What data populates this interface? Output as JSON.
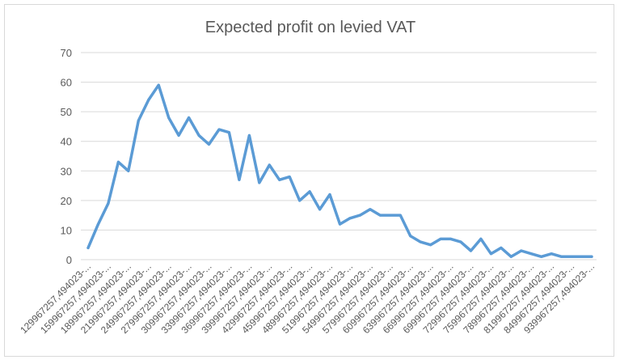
{
  "chart_data": {
    "type": "line",
    "title": "Expected profit on levied VAT",
    "xlabel": "",
    "ylabel": "",
    "ylim": [
      0,
      70
    ],
    "yticks": [
      0,
      10,
      20,
      30,
      40,
      50,
      60,
      70
    ],
    "grid": true,
    "legend": "none",
    "colors": {
      "line": "#5b9bd5",
      "grid": "#d9d9d9",
      "text": "#595959"
    },
    "categories": [
      "129967257,494023-...",
      "",
      "159967257,494023-...",
      "",
      "189967257,494023-...",
      "",
      "219967257,494023-...",
      "",
      "249967257,494023-...",
      "",
      "279967257,494023-...",
      "",
      "309967257,494023-...",
      "",
      "339967257,494023-...",
      "",
      "369967257,494023-...",
      "",
      "399967257,494023-...",
      "",
      "429967257,494023-...",
      "",
      "459967257,494023-...",
      "",
      "489967257,494023-...",
      "",
      "519967257,494023-...",
      "",
      "549967257,494023-...",
      "",
      "579967257,494023-...",
      "",
      "609967257,494023-...",
      "",
      "639967257,494023-...",
      "",
      "669967257,494023-...",
      "",
      "699967257,494023-...",
      "",
      "729967257,494023-...",
      "",
      "759967257,494023-...",
      "",
      "789967257,494023-...",
      "",
      "819967257,494023-...",
      "",
      "849967257,494023-...",
      "",
      "939967257,494023-..."
    ],
    "values": [
      4,
      12,
      19,
      33,
      30,
      47,
      54,
      59,
      48,
      42,
      48,
      42,
      39,
      44,
      43,
      27,
      42,
      26,
      32,
      27,
      28,
      20,
      23,
      17,
      22,
      12,
      14,
      15,
      17,
      15,
      15,
      15,
      8,
      6,
      5,
      7,
      7,
      6,
      3,
      7,
      2,
      4,
      1,
      3,
      2,
      1,
      2,
      1,
      1,
      1,
      1
    ]
  }
}
